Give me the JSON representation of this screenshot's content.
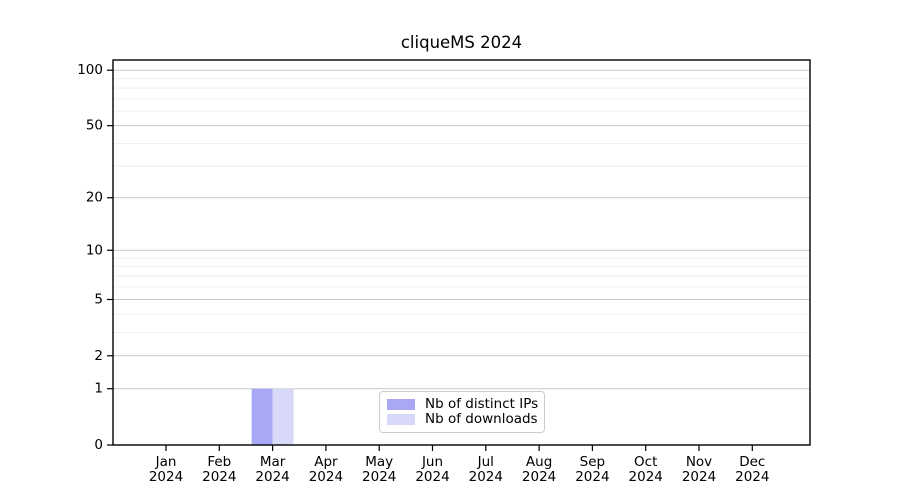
{
  "figure": {
    "background": "#ffffff"
  },
  "chart_data": {
    "type": "bar",
    "title": "cliqueMS 2024",
    "categories": [
      [
        "Jan",
        "2024"
      ],
      [
        "Feb",
        "2024"
      ],
      [
        "Mar",
        "2024"
      ],
      [
        "Apr",
        "2024"
      ],
      [
        "May",
        "2024"
      ],
      [
        "Jun",
        "2024"
      ],
      [
        "Jul",
        "2024"
      ],
      [
        "Aug",
        "2024"
      ],
      [
        "Sep",
        "2024"
      ],
      [
        "Oct",
        "2024"
      ],
      [
        "Nov",
        "2024"
      ],
      [
        "Dec",
        "2024"
      ]
    ],
    "series": [
      {
        "name": "Nb of distinct IPs",
        "color": "#a8a8f6",
        "values": [
          0,
          0,
          1,
          0,
          0,
          0,
          0,
          0,
          0,
          0,
          0,
          0
        ]
      },
      {
        "name": "Nb of downloads",
        "color": "#d8d8f9",
        "values": [
          0,
          0,
          1,
          0,
          0,
          0,
          0,
          0,
          0,
          0,
          0,
          0
        ]
      }
    ],
    "y_axis": {
      "scale": "log1p",
      "ticks": [
        0,
        1,
        2,
        5,
        10,
        20,
        50,
        100
      ],
      "minor_gridlines": [
        3,
        4,
        6,
        7,
        8,
        9,
        30,
        40,
        60,
        70,
        80,
        90
      ]
    },
    "legend": {
      "position": "lower center"
    },
    "colors": {
      "axis": "#000000",
      "major_grid": "#c9c9c9",
      "minor_grid": "#ededed",
      "tick_text": "#000000",
      "legend_border": "#cccccc"
    }
  }
}
